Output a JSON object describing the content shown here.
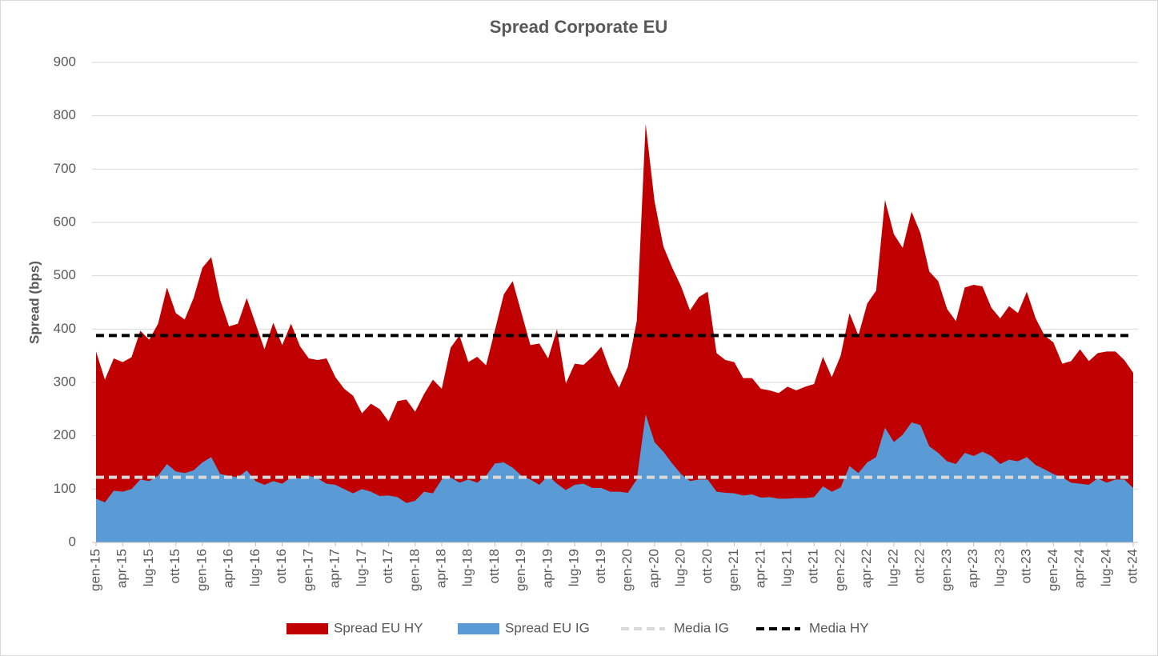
{
  "chart_data": {
    "type": "area",
    "title": "Spread Corporate EU",
    "y_label": "Spread (bps)",
    "categories": [
      "gen-15",
      null,
      null,
      "apr-15",
      null,
      null,
      "lug-15",
      null,
      null,
      "ott-15",
      null,
      null,
      "gen-16",
      null,
      null,
      "apr-16",
      null,
      null,
      "lug-16",
      null,
      null,
      "ott-16",
      null,
      null,
      "gen-17",
      null,
      null,
      "apr-17",
      null,
      null,
      "lug-17",
      null,
      null,
      "ott-17",
      null,
      null,
      "gen-18",
      null,
      null,
      "apr-18",
      null,
      null,
      "lug-18",
      null,
      null,
      "ott-18",
      null,
      null,
      "gen-19",
      null,
      null,
      "apr-19",
      null,
      null,
      "lug-19",
      null,
      null,
      "ott-19",
      null,
      null,
      "gen-20",
      null,
      null,
      "apr-20",
      null,
      null,
      "lug-20",
      null,
      null,
      "ott-20",
      null,
      null,
      "gen-21",
      null,
      null,
      "apr-21",
      null,
      null,
      "lug-21",
      null,
      null,
      "ott-21",
      null,
      null,
      "gen-22",
      null,
      null,
      "apr-22",
      null,
      null,
      "lug-22",
      null,
      null,
      "ott-22",
      null,
      null,
      "gen-23",
      null,
      null,
      "apr-23",
      null,
      null,
      "lug-23",
      null,
      null,
      "ott-23",
      null,
      null,
      "gen-24",
      null,
      null,
      "apr-24",
      null,
      null,
      "lug-24",
      null,
      null,
      "ott-24"
    ],
    "series": [
      {
        "name": "Spread EU HY",
        "color": "#c00000",
        "kind": "area",
        "values": [
          358,
          305,
          345,
          338,
          347,
          397,
          380,
          410,
          478,
          430,
          418,
          458,
          515,
          535,
          455,
          405,
          410,
          458,
          410,
          362,
          412,
          370,
          410,
          368,
          345,
          342,
          345,
          310,
          288,
          275,
          242,
          260,
          250,
          227,
          265,
          268,
          245,
          278,
          305,
          288,
          365,
          388,
          338,
          348,
          332,
          398,
          465,
          490,
          430,
          370,
          373,
          345,
          400,
          298,
          335,
          333,
          348,
          367,
          322,
          290,
          330,
          415,
          785,
          640,
          555,
          515,
          480,
          435,
          460,
          470,
          355,
          342,
          338,
          308,
          308,
          288,
          285,
          280,
          292,
          285,
          292,
          297,
          348,
          310,
          350,
          430,
          388,
          448,
          472,
          642,
          578,
          552,
          620,
          580,
          508,
          490,
          438,
          415,
          478,
          483,
          480,
          440,
          420,
          443,
          430,
          470,
          420,
          388,
          375,
          335,
          340,
          362,
          340,
          355,
          358,
          358,
          342,
          318
        ]
      },
      {
        "name": "Spread EU IG",
        "color": "#5b9bd5",
        "kind": "area",
        "values": [
          82,
          75,
          97,
          95,
          100,
          118,
          115,
          125,
          147,
          133,
          130,
          135,
          150,
          160,
          128,
          125,
          122,
          135,
          115,
          108,
          115,
          110,
          122,
          120,
          125,
          120,
          110,
          108,
          100,
          92,
          100,
          95,
          87,
          88,
          85,
          74,
          78,
          95,
          92,
          118,
          122,
          112,
          118,
          112,
          125,
          148,
          150,
          140,
          125,
          118,
          108,
          125,
          110,
          98,
          108,
          110,
          102,
          102,
          95,
          95,
          93,
          118,
          240,
          188,
          170,
          148,
          128,
          115,
          118,
          118,
          95,
          93,
          92,
          88,
          90,
          84,
          85,
          82,
          82,
          83,
          83,
          85,
          105,
          95,
          103,
          143,
          130,
          150,
          160,
          215,
          188,
          202,
          225,
          220,
          180,
          168,
          152,
          147,
          168,
          162,
          170,
          162,
          147,
          155,
          152,
          160,
          145,
          137,
          128,
          122,
          112,
          110,
          108,
          120,
          112,
          118,
          118,
          102
        ]
      },
      {
        "name": "Media IG",
        "color": "#d9d9d9",
        "kind": "hline",
        "value": 122
      },
      {
        "name": "Media HY",
        "color": "#000000",
        "kind": "hline",
        "value": 388
      }
    ],
    "ylim": [
      0,
      900
    ],
    "yticks": [
      0,
      100,
      200,
      300,
      400,
      500,
      600,
      700,
      800,
      900
    ],
    "grid": true,
    "legend": "bottom"
  }
}
